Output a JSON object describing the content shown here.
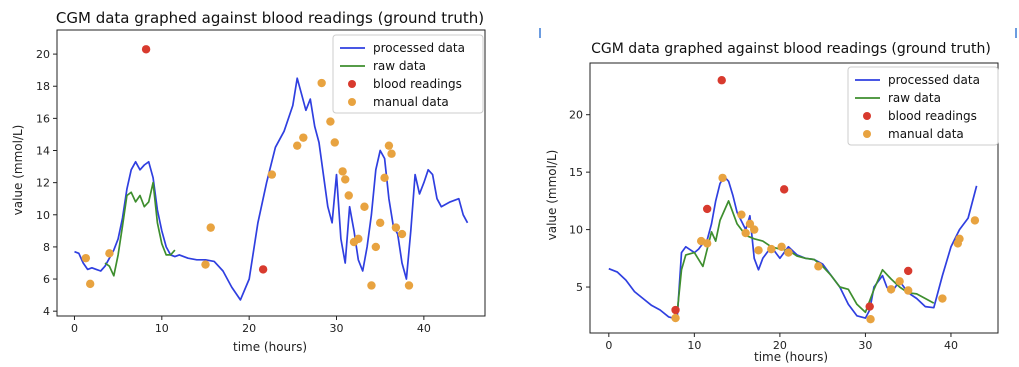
{
  "chart_data": [
    {
      "type": "line",
      "title": "CGM data graphed against blood readings (ground truth)",
      "xlabel": "time (hours)",
      "ylabel": "value (mmol/L)",
      "xlim": [
        -2,
        47
      ],
      "ylim": [
        3.7,
        21.5
      ],
      "xticks": [
        0,
        10,
        20,
        30,
        40
      ],
      "yticks": [
        4,
        6,
        8,
        10,
        12,
        14,
        16,
        18,
        20
      ],
      "legend_position": "upper right",
      "legend": [
        "processed data",
        "raw data",
        "blood readings",
        "manual data"
      ],
      "colors": {
        "processed": "#2f3fe0",
        "raw": "#3e8e2e",
        "blood": "#d83a2e",
        "manual": "#e8a340"
      },
      "series": [
        {
          "name": "processed data",
          "style": "line",
          "x": [
            0,
            0.5,
            1,
            1.5,
            2,
            2.5,
            3,
            3.5,
            4,
            4.5,
            5,
            5.5,
            6,
            6.5,
            7,
            7.5,
            8,
            8.5,
            9,
            9.5,
            10,
            10.5,
            11,
            11.5,
            12,
            13,
            14,
            15,
            16,
            17,
            18,
            19,
            20,
            21,
            22,
            23,
            24,
            25,
            25.5,
            26,
            26.5,
            27,
            27.5,
            28,
            28.5,
            29,
            29.5,
            30,
            30.5,
            31,
            31.5,
            32,
            32.5,
            33,
            33.5,
            34,
            34.5,
            35,
            35.5,
            36,
            36.5,
            37,
            37.5,
            38,
            38.5,
            39,
            39.5,
            40,
            40.5,
            41,
            41.5,
            42,
            43,
            44,
            44.5,
            45
          ],
          "y": [
            7.7,
            7.6,
            7.0,
            6.6,
            6.7,
            6.6,
            6.5,
            6.8,
            7.3,
            7.8,
            8.5,
            9.8,
            11.6,
            12.8,
            13.3,
            12.8,
            13.1,
            13.3,
            12.3,
            10.3,
            9.0,
            8.0,
            7.5,
            7.4,
            7.5,
            7.3,
            7.2,
            7.2,
            7.1,
            6.5,
            5.5,
            4.7,
            6.0,
            9.5,
            12.0,
            14.2,
            15.2,
            16.8,
            18.5,
            17.5,
            16.5,
            17.2,
            15.5,
            14.5,
            12.5,
            10.5,
            9.5,
            12.5,
            8.5,
            7.0,
            10.5,
            9.0,
            7.2,
            6.5,
            8.0,
            10.0,
            12.8,
            14.0,
            13.5,
            11.0,
            9.3,
            8.8,
            7.0,
            6.0,
            9.0,
            12.5,
            11.3,
            12.0,
            12.8,
            12.5,
            11.0,
            10.5,
            10.8,
            11.0,
            10.0,
            9.5
          ]
        },
        {
          "name": "raw data",
          "style": "line",
          "x": [
            3.5,
            4,
            4.5,
            5,
            5.5,
            6,
            6.5,
            7,
            7.5,
            8,
            8.5,
            9,
            9.5,
            10,
            10.5,
            11,
            11.5
          ],
          "y": [
            7.0,
            6.8,
            6.2,
            7.5,
            9.3,
            11.2,
            11.4,
            10.8,
            11.2,
            10.5,
            10.8,
            12.0,
            9.5,
            8.2,
            7.5,
            7.5,
            7.8
          ]
        },
        {
          "name": "blood readings",
          "style": "scatter",
          "x": [
            8.2,
            21.6
          ],
          "y": [
            20.3,
            6.6
          ]
        },
        {
          "name": "manual data",
          "style": "scatter",
          "x": [
            1.3,
            1.8,
            4.0,
            15.0,
            15.6,
            22.6,
            25.5,
            26.2,
            28.3,
            29.3,
            29.8,
            30.7,
            31.0,
            31.4,
            32.0,
            32.5,
            33.2,
            34.0,
            34.5,
            35.0,
            35.5,
            36.0,
            36.3,
            36.8,
            37.5,
            38.3
          ],
          "y": [
            7.3,
            5.7,
            7.6,
            6.9,
            9.2,
            12.5,
            14.3,
            14.8,
            18.2,
            15.8,
            14.5,
            12.7,
            12.2,
            11.2,
            8.3,
            8.5,
            10.5,
            5.6,
            8.0,
            9.5,
            12.3,
            14.3,
            13.8,
            9.2,
            8.8,
            5.6
          ]
        }
      ]
    },
    {
      "type": "line",
      "title": "CGM data graphed against blood readings (ground truth)",
      "xlabel": "time (hours)",
      "ylabel": "value (mmol/L)",
      "xlim": [
        -2.2,
        45.5
      ],
      "ylim": [
        1.0,
        24.5
      ],
      "xticks": [
        0,
        10,
        20,
        30,
        40
      ],
      "yticks": [
        5,
        10,
        15,
        20
      ],
      "legend_position": "upper right",
      "legend": [
        "processed data",
        "raw data",
        "blood readings",
        "manual data"
      ],
      "colors": {
        "processed": "#2f3fe0",
        "raw": "#3e8e2e",
        "blood": "#d83a2e",
        "manual": "#e8a340"
      },
      "series": [
        {
          "name": "processed data",
          "style": "line",
          "x": [
            0,
            1,
            2,
            3,
            4,
            5,
            6,
            7,
            7.5,
            8,
            8.5,
            9,
            10,
            10.5,
            11,
            11.5,
            12,
            12.5,
            13,
            13.5,
            14,
            14.5,
            15,
            16,
            16.5,
            17,
            17.5,
            18,
            19,
            20,
            21,
            22,
            23,
            24,
            25,
            26,
            27,
            28,
            29,
            30,
            30.5,
            31,
            32,
            32.5,
            33,
            34,
            35,
            36,
            37,
            38,
            39,
            40,
            41,
            42,
            43
          ],
          "y": [
            6.6,
            6.3,
            5.6,
            4.6,
            4.0,
            3.4,
            3.0,
            2.4,
            2.3,
            2.3,
            8.0,
            8.5,
            8.0,
            8.3,
            8.8,
            9.1,
            10.5,
            12.5,
            14.0,
            14.6,
            14.2,
            13.0,
            11.5,
            10.0,
            11.2,
            7.5,
            6.5,
            7.5,
            8.5,
            7.5,
            8.5,
            7.8,
            7.5,
            7.4,
            7.0,
            6.0,
            5.0,
            3.5,
            2.5,
            2.3,
            3.0,
            5.0,
            6.0,
            5.0,
            4.5,
            5.5,
            4.5,
            4.0,
            3.3,
            3.2,
            6.0,
            8.5,
            10.0,
            11.0,
            13.8
          ]
        },
        {
          "name": "raw data",
          "style": "line",
          "x": [
            8,
            8.5,
            9,
            10,
            11,
            12,
            12.5,
            13,
            14,
            15,
            16,
            17,
            18,
            19,
            20,
            21,
            22,
            23,
            24,
            25,
            26,
            27,
            28,
            29,
            30,
            31,
            32,
            33,
            34,
            35,
            36,
            37,
            38
          ],
          "y": [
            2.8,
            6.5,
            7.8,
            8.0,
            6.8,
            9.8,
            9.0,
            10.8,
            12.5,
            10.5,
            9.5,
            9.2,
            9.0,
            8.5,
            8.3,
            8.2,
            7.7,
            7.5,
            7.4,
            6.8,
            6.0,
            5.0,
            4.8,
            3.5,
            2.8,
            4.8,
            6.5,
            5.7,
            5.0,
            4.5,
            4.4,
            4.0,
            3.6
          ]
        },
        {
          "name": "blood readings",
          "style": "scatter",
          "x": [
            7.8,
            11.5,
            13.2,
            20.5,
            30.5,
            35.0
          ],
          "y": [
            3.0,
            11.8,
            23.0,
            13.5,
            3.3,
            6.4
          ]
        },
        {
          "name": "manual data",
          "style": "scatter",
          "x": [
            7.8,
            10.8,
            11.5,
            13.3,
            15.5,
            16.0,
            16.5,
            17.0,
            17.5,
            19.0,
            20.2,
            21.0,
            24.5,
            30.6,
            33.0,
            34.0,
            35.0,
            39.0,
            40.8,
            41.0,
            42.8
          ],
          "y": [
            2.3,
            9.0,
            8.8,
            14.5,
            11.3,
            9.7,
            10.5,
            10.0,
            8.2,
            8.3,
            8.5,
            8.0,
            6.8,
            2.2,
            4.8,
            5.5,
            4.7,
            4.0,
            8.8,
            9.2,
            10.8
          ]
        }
      ]
    }
  ]
}
